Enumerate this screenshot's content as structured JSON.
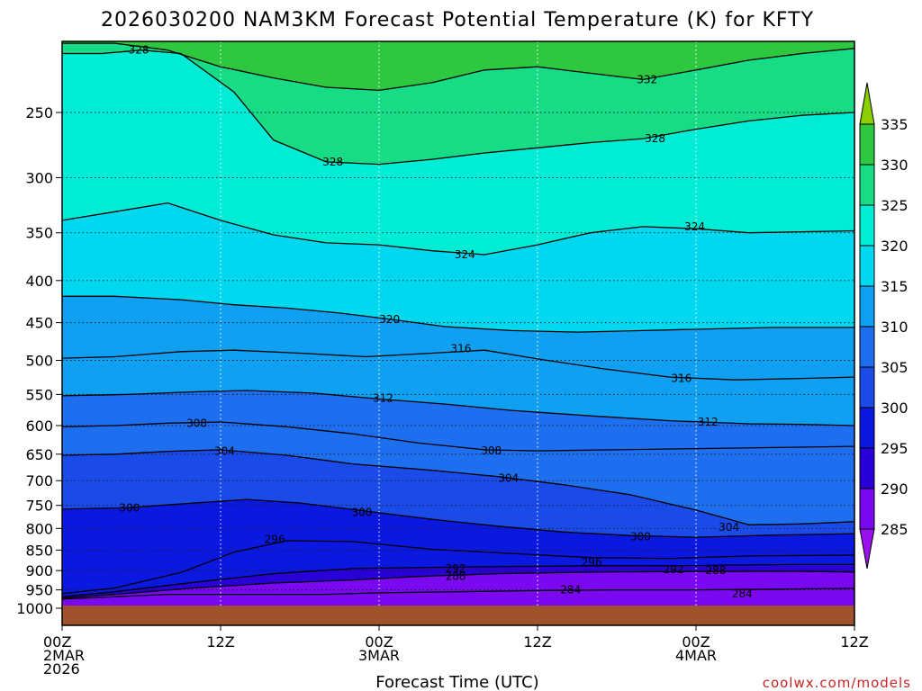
{
  "chart_data": {
    "type": "heatmap",
    "title": "2026030200 NAM3KM Forecast Potential Temperature (K) for KFTY",
    "xlabel": "Forecast Time (UTC)",
    "ylabel": "",
    "y_scale": "log-pressure",
    "ylim": [
      1000,
      200
    ],
    "y_ticks": [
      "250",
      "300",
      "350",
      "400",
      "450",
      "500",
      "550",
      "600",
      "650",
      "700",
      "750",
      "800",
      "850",
      "900",
      "950",
      "1000"
    ],
    "x_ticks": [
      {
        "hour": 0,
        "lines": [
          "00Z",
          "2MAR",
          "2026"
        ]
      },
      {
        "hour": 12,
        "lines": [
          "12Z"
        ]
      },
      {
        "hour": 24,
        "lines": [
          "00Z",
          "3MAR"
        ]
      },
      {
        "hour": 36,
        "lines": [
          "12Z"
        ]
      },
      {
        "hour": 48,
        "lines": [
          "00Z",
          "4MAR"
        ]
      },
      {
        "hour": 60,
        "lines": [
          "12Z"
        ]
      }
    ],
    "xlim": [
      0,
      60
    ],
    "grid": true,
    "colorbar": {
      "levels": [
        "285",
        "290",
        "295",
        "300",
        "305",
        "310",
        "315",
        "320",
        "325",
        "330",
        "335"
      ],
      "colors": [
        "#9b10ee",
        "#7a08f0",
        "#2a00d8",
        "#0a18e0",
        "#1a4ae8",
        "#1e6ef0",
        "#0fa0f2",
        "#00d8f0",
        "#00ecd4",
        "#16dc86",
        "#2ec840",
        "#8ad000"
      ]
    },
    "series": [
      {
        "name": "284",
        "labels": [
          {
            "x": 38.5,
            "p": 950
          },
          {
            "x": 51.5,
            "p": 960
          }
        ],
        "points": [
          [
            0,
            975
          ],
          [
            3,
            970
          ],
          [
            8,
            962
          ],
          [
            15,
            962
          ],
          [
            20,
            962
          ],
          [
            24,
            958
          ],
          [
            30,
            955
          ],
          [
            36,
            952
          ],
          [
            42,
            950
          ],
          [
            48,
            950
          ],
          [
            54,
            948
          ],
          [
            60,
            946
          ]
        ]
      },
      {
        "name": "288",
        "labels": [
          {
            "x": 29.8,
            "p": 914
          },
          {
            "x": 49.5,
            "p": 900
          }
        ],
        "points": [
          [
            0,
            972
          ],
          [
            4,
            962
          ],
          [
            10,
            945
          ],
          [
            16,
            932
          ],
          [
            22,
            924
          ],
          [
            27,
            915
          ],
          [
            33,
            908
          ],
          [
            40,
            904
          ],
          [
            46,
            903
          ],
          [
            52,
            902
          ],
          [
            56,
            902
          ],
          [
            60,
            904
          ]
        ]
      },
      {
        "name": "292",
        "labels": [
          {
            "x": 29.8,
            "p": 895
          },
          {
            "x": 46.3,
            "p": 897
          }
        ],
        "points": [
          [
            0,
            968
          ],
          [
            4,
            955
          ],
          [
            10,
            930
          ],
          [
            16,
            908
          ],
          [
            22,
            895
          ],
          [
            28,
            892
          ],
          [
            34,
            890
          ],
          [
            40,
            888
          ],
          [
            46,
            888
          ],
          [
            52,
            886
          ],
          [
            56,
            885
          ],
          [
            60,
            885
          ]
        ]
      },
      {
        "name": "296",
        "labels": [
          {
            "x": 16.1,
            "p": 825
          },
          {
            "x": 40.1,
            "p": 880
          }
        ],
        "points": [
          [
            0,
            960
          ],
          [
            4,
            945
          ],
          [
            9,
            905
          ],
          [
            13,
            855
          ],
          [
            17,
            828
          ],
          [
            22,
            830
          ],
          [
            28,
            848
          ],
          [
            34,
            858
          ],
          [
            40,
            868
          ],
          [
            46,
            870
          ],
          [
            52,
            864
          ],
          [
            60,
            862
          ]
        ]
      },
      {
        "name": "300",
        "labels": [
          {
            "x": 5.1,
            "p": 755
          },
          {
            "x": 22.7,
            "p": 765
          },
          {
            "x": 43.8,
            "p": 819
          }
        ],
        "points": [
          [
            0,
            758
          ],
          [
            5,
            755
          ],
          [
            10,
            745
          ],
          [
            14,
            738
          ],
          [
            18,
            745
          ],
          [
            23,
            762
          ],
          [
            28,
            780
          ],
          [
            33,
            795
          ],
          [
            38,
            808
          ],
          [
            43,
            816
          ],
          [
            48,
            820
          ],
          [
            54,
            815
          ],
          [
            60,
            812
          ]
        ]
      },
      {
        "name": "304",
        "labels": [
          {
            "x": 12.3,
            "p": 645
          },
          {
            "x": 33.8,
            "p": 695
          },
          {
            "x": 50.5,
            "p": 797
          }
        ],
        "points": [
          [
            0,
            652
          ],
          [
            4,
            650
          ],
          [
            8,
            645
          ],
          [
            12,
            642
          ],
          [
            17,
            652
          ],
          [
            22,
            668
          ],
          [
            28,
            680
          ],
          [
            33,
            692
          ],
          [
            38,
            708
          ],
          [
            43,
            728
          ],
          [
            48,
            760
          ],
          [
            52,
            792
          ],
          [
            56,
            790
          ],
          [
            60,
            785
          ]
        ]
      },
      {
        "name": "308",
        "labels": [
          {
            "x": 10.2,
            "p": 596
          },
          {
            "x": 32.5,
            "p": 644
          }
        ],
        "points": [
          [
            0,
            602
          ],
          [
            4,
            600
          ],
          [
            8,
            596
          ],
          [
            12,
            594
          ],
          [
            17,
            602
          ],
          [
            22,
            614
          ],
          [
            27,
            630
          ],
          [
            32,
            642
          ],
          [
            36,
            644
          ],
          [
            42,
            642
          ],
          [
            48,
            640
          ],
          [
            54,
            638
          ],
          [
            60,
            636
          ]
        ]
      },
      {
        "name": "312",
        "labels": [
          {
            "x": 24.3,
            "p": 556
          },
          {
            "x": 48.9,
            "p": 594
          }
        ],
        "points": [
          [
            0,
            552
          ],
          [
            5,
            550
          ],
          [
            10,
            546
          ],
          [
            14,
            544
          ],
          [
            19,
            548
          ],
          [
            24,
            557
          ],
          [
            29,
            565
          ],
          [
            34,
            575
          ],
          [
            40,
            584
          ],
          [
            46,
            592
          ],
          [
            52,
            597
          ],
          [
            56,
            598
          ],
          [
            60,
            600
          ]
        ]
      },
      {
        "name": "316",
        "labels": [
          {
            "x": 30.2,
            "p": 484
          },
          {
            "x": 46.9,
            "p": 526
          }
        ],
        "points": [
          [
            0,
            497
          ],
          [
            4,
            495
          ],
          [
            9,
            488
          ],
          [
            13,
            486
          ],
          [
            18,
            490
          ],
          [
            23,
            495
          ],
          [
            28,
            490
          ],
          [
            32,
            486
          ],
          [
            36,
            498
          ],
          [
            41,
            512
          ],
          [
            46,
            524
          ],
          [
            51,
            528
          ],
          [
            56,
            526
          ],
          [
            60,
            524
          ]
        ]
      },
      {
        "name": "320",
        "labels": [
          {
            "x": 24.8,
            "p": 446
          }
        ],
        "points": [
          [
            0,
            418
          ],
          [
            4,
            418
          ],
          [
            9,
            422
          ],
          [
            13,
            428
          ],
          [
            17,
            432
          ],
          [
            21,
            438
          ],
          [
            25,
            446
          ],
          [
            29,
            455
          ],
          [
            34,
            460
          ],
          [
            39,
            462
          ],
          [
            44,
            460
          ],
          [
            49,
            458
          ],
          [
            54,
            456
          ],
          [
            60,
            456
          ]
        ]
      },
      {
        "name": "324",
        "labels": [
          {
            "x": 30.5,
            "p": 372
          },
          {
            "x": 47.9,
            "p": 344
          }
        ],
        "points": [
          [
            0,
            338
          ],
          [
            4,
            330
          ],
          [
            8,
            322
          ],
          [
            12,
            338
          ],
          [
            16,
            352
          ],
          [
            20,
            360
          ],
          [
            24,
            362
          ],
          [
            28,
            368
          ],
          [
            32,
            372
          ],
          [
            36,
            362
          ],
          [
            40,
            350
          ],
          [
            44,
            344
          ],
          [
            48,
            346
          ],
          [
            52,
            350
          ],
          [
            56,
            349
          ],
          [
            60,
            348
          ]
        ]
      },
      {
        "name": "328",
        "labels": [
          {
            "x": 5.8,
            "p": 210
          },
          {
            "x": 20.5,
            "p": 287
          },
          {
            "x": 44.9,
            "p": 269
          }
        ],
        "points": [
          [
            0,
            212
          ],
          [
            3,
            212
          ],
          [
            6,
            210
          ],
          [
            9,
            212
          ],
          [
            13,
            236
          ],
          [
            16,
            270
          ],
          [
            20,
            287
          ],
          [
            24,
            289
          ],
          [
            28,
            285
          ],
          [
            32,
            280
          ],
          [
            36,
            276
          ],
          [
            40,
            272
          ],
          [
            44,
            269
          ],
          [
            48,
            262
          ],
          [
            52,
            256
          ],
          [
            56,
            252
          ],
          [
            60,
            250
          ]
        ]
      },
      {
        "name": "332",
        "labels": [
          {
            "x": 44.3,
            "p": 228
          }
        ],
        "points": [
          [
            0,
            206
          ],
          [
            4,
            206
          ],
          [
            8,
            210
          ],
          [
            12,
            220
          ],
          [
            16,
            227
          ],
          [
            20,
            233
          ],
          [
            24,
            235
          ],
          [
            28,
            230
          ],
          [
            32,
            222
          ],
          [
            36,
            220
          ],
          [
            40,
            224
          ],
          [
            44,
            228
          ],
          [
            48,
            222
          ],
          [
            52,
            216
          ],
          [
            56,
            212
          ],
          [
            60,
            209
          ]
        ]
      }
    ]
  },
  "credit": "coolwx.com/models"
}
